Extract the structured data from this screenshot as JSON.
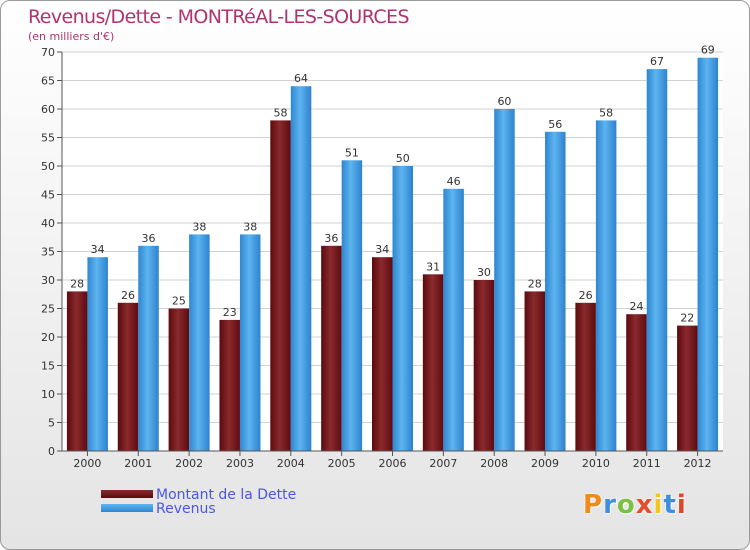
{
  "title": "Revenus/Dette - MONTRéAL-LES-SOURCES",
  "subtitle": "(en milliers d'€)",
  "logo_text": "Proxiti",
  "colors": {
    "title": "#b0326e",
    "debt": "#6f0f14",
    "revenue": "#3d9fe6",
    "legend_text": "#4b57e0",
    "logo": [
      "#f08a1c",
      "#3d8ee0",
      "#7ac143",
      "#e64c2e",
      "#f5c518",
      "#3d8ee0",
      "#e2452a"
    ]
  },
  "legend": [
    {
      "label": "Montant de la Dette",
      "color": "#6f0f14"
    },
    {
      "label": "Revenus",
      "color": "#3d9fe6"
    }
  ],
  "chart_data": {
    "type": "bar",
    "categories": [
      "2000",
      "2001",
      "2002",
      "2003",
      "2004",
      "2005",
      "2006",
      "2007",
      "2008",
      "2009",
      "2010",
      "2011",
      "2012"
    ],
    "series": [
      {
        "name": "Montant de la Dette",
        "values": [
          28,
          26,
          25,
          23,
          58,
          36,
          34,
          31,
          30,
          28,
          26,
          24,
          22
        ]
      },
      {
        "name": "Revenus",
        "values": [
          34,
          36,
          38,
          38,
          64,
          51,
          50,
          46,
          60,
          56,
          58,
          67,
          69
        ]
      }
    ],
    "ylim": [
      0,
      70
    ],
    "yticks": [
      0,
      5,
      10,
      15,
      20,
      25,
      30,
      35,
      40,
      45,
      50,
      55,
      60,
      65,
      70
    ],
    "grid": true
  }
}
